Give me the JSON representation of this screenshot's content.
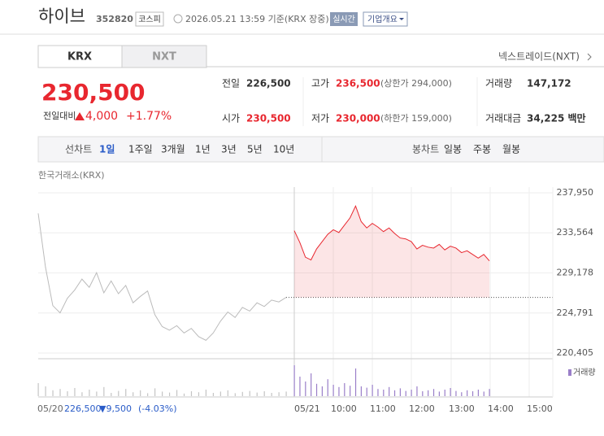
{
  "header": {
    "name": "하이브",
    "code": "352820",
    "market": "코스피",
    "timestamp": "2026.05.21 13:59 기준(KRX 장중)",
    "realtime": "실시간",
    "overview": "기업개요"
  },
  "tabs": [
    "KRX",
    "NXT"
  ],
  "nxt_link": "넥스트레이드(NXT)",
  "price": {
    "current": "230,500",
    "change_label": "전일대비",
    "change": "4,000",
    "change_pct": "+1.77%"
  },
  "stats": [
    {
      "label": "전일",
      "value": "226,500"
    },
    {
      "label": "고가",
      "value": "236,500",
      "note": "(상한가 294,000)"
    },
    {
      "label": "거래량",
      "value": "147,172"
    },
    {
      "label": "시가",
      "value": "230,500"
    },
    {
      "label": "저가",
      "value": "230,000",
      "note": "(하한가 159,000)"
    },
    {
      "label": "거래대금",
      "value": "34,225 백만"
    }
  ],
  "toolbar": {
    "line_label": "선차트",
    "line_periods": [
      "1일",
      "1주일",
      "3개월",
      "1년",
      "3년",
      "5년",
      "10년"
    ],
    "candle_label": "봉차트",
    "candle_periods": [
      "일봉",
      "주봉",
      "월봉"
    ]
  },
  "chart_data": {
    "type": "line",
    "source": "한국거래소(KRX)",
    "volume_label": "거래량",
    "ylim": [
      220405,
      237950
    ],
    "yticks": [
      {
        "value": 220405,
        "label": "220,405"
      },
      {
        "value": 224791,
        "label": "224,791"
      },
      {
        "value": 229178,
        "label": "229,178"
      },
      {
        "value": 233564,
        "label": "233,564"
      },
      {
        "value": 237950,
        "label": "237,950"
      }
    ],
    "xticks": [
      "05/21",
      "10:00",
      "11:00",
      "12:00",
      "13:00",
      "14:00",
      "15:00"
    ],
    "reference": 226500,
    "series": [
      {
        "color": "#bbbbbb",
        "values": [
          235700,
          229800,
          225600,
          224800,
          226400,
          227300,
          228500,
          227600,
          229200,
          227000,
          228300,
          226900,
          227800,
          225900,
          226600,
          227200,
          224600,
          223300,
          222900,
          223400,
          222600,
          223100,
          222200,
          221800,
          222600,
          223900,
          224900,
          224300,
          225400,
          225000,
          225900,
          225500,
          226200,
          226000,
          226500
        ]
      },
      {
        "color": "#e8272f",
        "values": [
          233800,
          232500,
          230900,
          230600,
          231800,
          232600,
          233400,
          233900,
          233600,
          234400,
          235200,
          236500,
          234800,
          234100,
          234600,
          234200,
          233700,
          234100,
          233500,
          233000,
          232900,
          232600,
          231800,
          232200,
          232000,
          231900,
          232300,
          231700,
          232100,
          231900,
          231400,
          231600,
          231200,
          230800,
          231200,
          230500
        ]
      }
    ],
    "volume": [
      {
        "color": "#c4c4c4",
        "values": [
          40,
          30,
          18,
          22,
          15,
          25,
          12,
          20,
          14,
          28,
          10,
          16,
          22,
          12,
          18,
          9,
          24,
          14,
          11,
          19,
          8,
          15,
          12,
          20,
          10,
          14,
          18,
          9,
          13,
          16,
          11,
          15,
          10,
          12,
          14
        ]
      },
      {
        "color": "#9a7fc9",
        "values": [
          95,
          60,
          45,
          70,
          38,
          30,
          52,
          35,
          28,
          40,
          32,
          85,
          30,
          26,
          35,
          22,
          20,
          28,
          18,
          24,
          16,
          20,
          30,
          15,
          18,
          22,
          14,
          20,
          25,
          16,
          12,
          18,
          15,
          20,
          14,
          22
        ]
      }
    ],
    "footer": {
      "date": "05/20",
      "close": "226,500",
      "change": "▼9,500",
      "change_pct": "(-4.03%)"
    }
  }
}
